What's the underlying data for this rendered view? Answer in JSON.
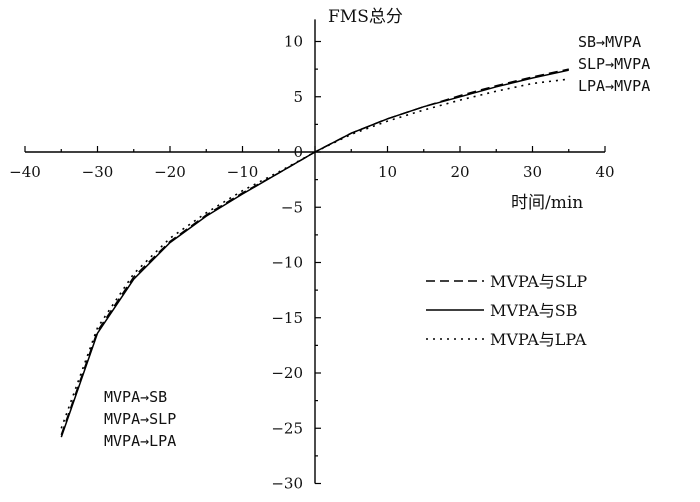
{
  "chart_data": {
    "type": "line",
    "xlabel": "时间/min",
    "ylabel": "FMS总分",
    "xlim": [
      -40,
      40
    ],
    "ylim": [
      -30,
      12
    ],
    "x_ticks": [
      -40,
      -30,
      -20,
      -10,
      0,
      10,
      20,
      30,
      40
    ],
    "y_ticks": [
      -30,
      -25,
      -20,
      -15,
      -10,
      -5,
      0,
      5,
      10
    ],
    "legend_position": "center-right",
    "series": [
      {
        "name": "MVPA与SLP",
        "style": "dashed",
        "x": [
          -35,
          -30,
          -25,
          -20,
          -15,
          -10,
          -5,
          0,
          5,
          10,
          15,
          20,
          25,
          30,
          35
        ],
        "y": [
          -25.6,
          -16.2,
          -11.3,
          -8.1,
          -5.7,
          -3.7,
          -1.9,
          0,
          1.7,
          3.0,
          4.1,
          5.1,
          6.0,
          6.8,
          7.5
        ]
      },
      {
        "name": "MVPA与SB",
        "style": "solid",
        "x": [
          -35,
          -30,
          -25,
          -20,
          -15,
          -10,
          -5,
          0,
          5,
          10,
          15,
          20,
          25,
          30,
          35
        ],
        "y": [
          -25.8,
          -16.4,
          -11.5,
          -8.2,
          -5.8,
          -3.8,
          -1.9,
          0,
          1.7,
          3.0,
          4.1,
          5.0,
          5.9,
          6.7,
          7.4
        ]
      },
      {
        "name": "MVPA与LPA",
        "style": "dotted",
        "x": [
          -35,
          -30,
          -25,
          -20,
          -15,
          -10,
          -5,
          0,
          5,
          10,
          15,
          20,
          25,
          30,
          35
        ],
        "y": [
          -25.0,
          -15.9,
          -11.0,
          -7.8,
          -5.5,
          -3.5,
          -1.8,
          0,
          1.6,
          2.8,
          3.8,
          4.7,
          5.5,
          6.2,
          6.6
        ]
      }
    ],
    "annotations_top_right": [
      "SB→MVPA",
      "SLP→MVPA",
      "LPA→MVPA"
    ],
    "annotations_bottom_left": [
      "MVPA→SB",
      "MVPA→SLP",
      "MVPA→LPA"
    ]
  }
}
